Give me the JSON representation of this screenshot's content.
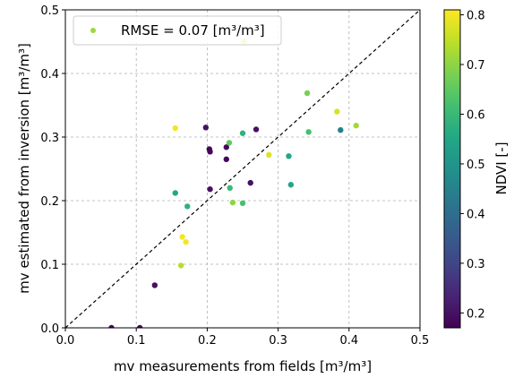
{
  "chart_data": {
    "type": "scatter",
    "xlabel": "mv measurements from fields [m³/m³]",
    "ylabel": "mv estimated from inversion [m³/m³]",
    "xlim": [
      0.0,
      0.5
    ],
    "ylim": [
      0.0,
      0.5
    ],
    "xticks": [
      "0.0",
      "0.1",
      "0.2",
      "0.3",
      "0.4",
      "0.5"
    ],
    "yticks": [
      "0.0",
      "0.1",
      "0.2",
      "0.3",
      "0.4",
      "0.5"
    ],
    "grid": true,
    "reference_line": "1:1 dashed black",
    "legend": {
      "label": "RMSE = 0.07 [m³/m³]",
      "position": "upper-left"
    },
    "colorbar": {
      "label": "NDVI [-]",
      "range": [
        0.17,
        0.81
      ],
      "ticks": [
        "0.2",
        "0.3",
        "0.4",
        "0.5",
        "0.6",
        "0.7",
        "0.8"
      ],
      "colormap": "viridis"
    },
    "points": [
      {
        "x": 0.065,
        "y": 0.0,
        "ndvi": 0.18
      },
      {
        "x": 0.105,
        "y": 0.0,
        "ndvi": 0.18
      },
      {
        "x": 0.126,
        "y": 0.067,
        "ndvi": 0.2
      },
      {
        "x": 0.163,
        "y": 0.098,
        "ndvi": 0.74
      },
      {
        "x": 0.165,
        "y": 0.143,
        "ndvi": 0.8
      },
      {
        "x": 0.17,
        "y": 0.135,
        "ndvi": 0.8
      },
      {
        "x": 0.155,
        "y": 0.212,
        "ndvi": 0.55
      },
      {
        "x": 0.172,
        "y": 0.191,
        "ndvi": 0.58
      },
      {
        "x": 0.155,
        "y": 0.314,
        "ndvi": 0.8
      },
      {
        "x": 0.198,
        "y": 0.315,
        "ndvi": 0.2
      },
      {
        "x": 0.203,
        "y": 0.281,
        "ndvi": 0.18
      },
      {
        "x": 0.204,
        "y": 0.277,
        "ndvi": 0.18
      },
      {
        "x": 0.204,
        "y": 0.218,
        "ndvi": 0.2
      },
      {
        "x": 0.227,
        "y": 0.284,
        "ndvi": 0.18
      },
      {
        "x": 0.227,
        "y": 0.265,
        "ndvi": 0.18
      },
      {
        "x": 0.231,
        "y": 0.291,
        "ndvi": 0.65
      },
      {
        "x": 0.232,
        "y": 0.22,
        "ndvi": 0.6
      },
      {
        "x": 0.236,
        "y": 0.197,
        "ndvi": 0.7
      },
      {
        "x": 0.25,
        "y": 0.306,
        "ndvi": 0.58
      },
      {
        "x": 0.252,
        "y": 0.45,
        "ndvi": 0.78
      },
      {
        "x": 0.25,
        "y": 0.196,
        "ndvi": 0.62
      },
      {
        "x": 0.261,
        "y": 0.228,
        "ndvi": 0.2
      },
      {
        "x": 0.269,
        "y": 0.312,
        "ndvi": 0.2
      },
      {
        "x": 0.287,
        "y": 0.272,
        "ndvi": 0.78
      },
      {
        "x": 0.315,
        "y": 0.27,
        "ndvi": 0.55
      },
      {
        "x": 0.318,
        "y": 0.225,
        "ndvi": 0.55
      },
      {
        "x": 0.341,
        "y": 0.369,
        "ndvi": 0.68
      },
      {
        "x": 0.343,
        "y": 0.308,
        "ndvi": 0.62
      },
      {
        "x": 0.383,
        "y": 0.34,
        "ndvi": 0.77
      },
      {
        "x": 0.388,
        "y": 0.311,
        "ndvi": 0.45
      },
      {
        "x": 0.41,
        "y": 0.318,
        "ndvi": 0.72
      }
    ]
  }
}
